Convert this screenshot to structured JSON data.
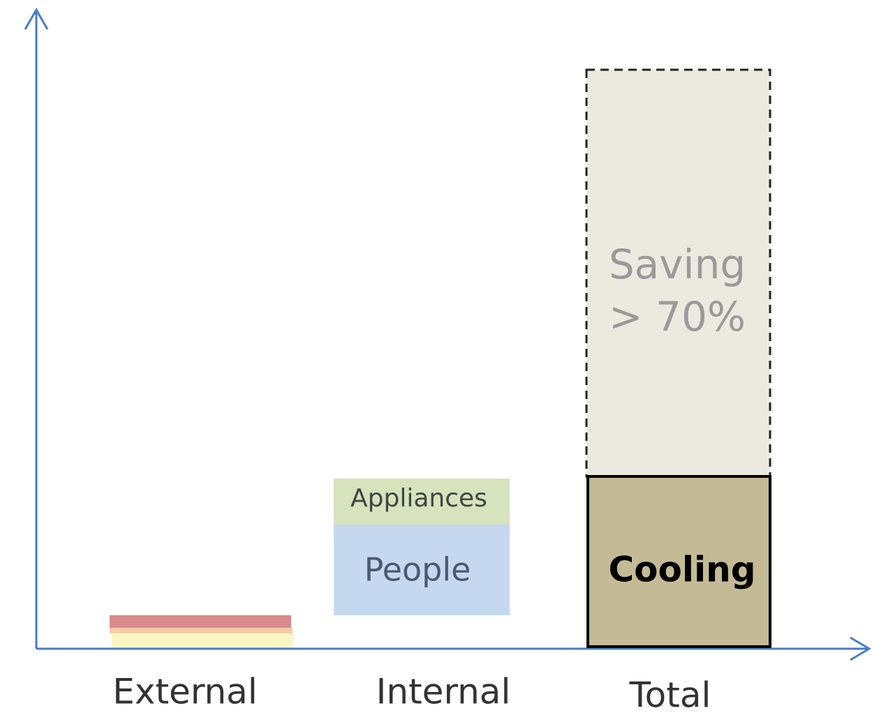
{
  "categories": [
    "External",
    "Internal",
    "Total"
  ],
  "blocks": {
    "appliances": "Appliances",
    "people": "People",
    "cooling": "Cooling",
    "saving": [
      "Saving",
      "> 70%"
    ]
  }
}
